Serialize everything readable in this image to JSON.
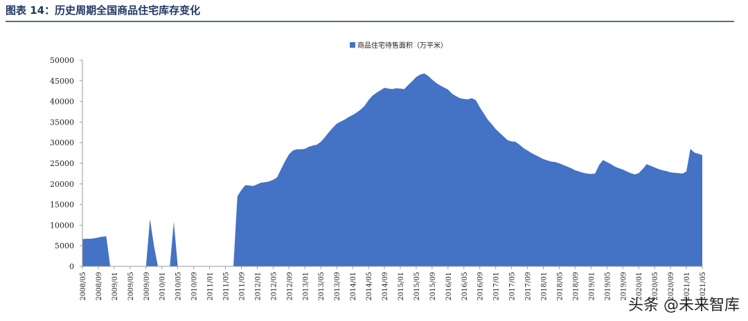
{
  "chart_data": {
    "type": "area",
    "title": "图表 14：历史周期全国商品住宅库存变化",
    "watermark": "头条 @未来智库",
    "categories": [
      "2008/05",
      null,
      null,
      null,
      "2008/09",
      null,
      null,
      null,
      "2009/01",
      null,
      null,
      null,
      "2009/05",
      null,
      null,
      null,
      "2009/09",
      null,
      null,
      null,
      "2010/01",
      null,
      null,
      null,
      "2010/05",
      null,
      null,
      null,
      "2010/09",
      null,
      null,
      null,
      "2011/01",
      null,
      null,
      null,
      "2011/05",
      null,
      null,
      null,
      "2011/09",
      null,
      null,
      null,
      "2012/01",
      null,
      null,
      null,
      "2012/05",
      null,
      null,
      null,
      "2012/09",
      null,
      null,
      null,
      "2013/01",
      null,
      null,
      null,
      "2013/05",
      null,
      null,
      null,
      "2013/09",
      null,
      null,
      null,
      "2014/01",
      null,
      null,
      null,
      "2014/05",
      null,
      null,
      null,
      "2014/09",
      null,
      null,
      null,
      "2015/01",
      null,
      null,
      null,
      "2015/05",
      null,
      null,
      null,
      "2015/09",
      null,
      null,
      null,
      "2016/01",
      null,
      null,
      null,
      "2016/05",
      null,
      null,
      null,
      "2016/09",
      null,
      null,
      null,
      "2017/01",
      null,
      null,
      null,
      "2017/05",
      null,
      null,
      null,
      "2017/09",
      null,
      null,
      null,
      "2018/01",
      null,
      null,
      null,
      "2018/05",
      null,
      null,
      null,
      "2018/09",
      null,
      null,
      null,
      "2019/01",
      null,
      null,
      null,
      "2019/05",
      null,
      null,
      null,
      "2019/09",
      null,
      null,
      null,
      "2020/01",
      null,
      null,
      null,
      "2020/05",
      null,
      null,
      null,
      "2020/09",
      null,
      null,
      null,
      "2021/01",
      null,
      null,
      null,
      "2021/05"
    ],
    "series": [
      {
        "name": "商品住宅待售面积（万平米）",
        "color": "#4472c4",
        "values": [
          6600,
          6700,
          6700,
          6800,
          7000,
          7200,
          7300,
          0,
          0,
          0,
          0,
          0,
          0,
          0,
          0,
          0,
          0,
          11500,
          5000,
          0,
          0,
          0,
          0,
          10800,
          0,
          0,
          0,
          0,
          0,
          0,
          0,
          0,
          0,
          0,
          0,
          0,
          0,
          0,
          0,
          17000,
          18500,
          19700,
          19600,
          19500,
          19900,
          20300,
          20400,
          20600,
          21000,
          21600,
          23600,
          25500,
          27200,
          28100,
          28400,
          28400,
          28500,
          29000,
          29300,
          29500,
          30200,
          31300,
          32500,
          33600,
          34600,
          35100,
          35600,
          36200,
          36700,
          37300,
          38000,
          38900,
          40300,
          41400,
          42100,
          42700,
          43300,
          43100,
          43000,
          43200,
          43100,
          43000,
          44000,
          44900,
          45900,
          46500,
          46800,
          46200,
          45300,
          44500,
          43900,
          43400,
          42900,
          41900,
          41300,
          40800,
          40600,
          40500,
          40800,
          40300,
          38600,
          37100,
          35600,
          34500,
          33300,
          32400,
          31500,
          30600,
          30300,
          30200,
          29500,
          28700,
          28100,
          27500,
          27000,
          26500,
          26000,
          25700,
          25400,
          25300,
          25000,
          24600,
          24200,
          23800,
          23300,
          23000,
          22700,
          22500,
          22400,
          22500,
          24500,
          25800,
          25300,
          24800,
          24200,
          23800,
          23500,
          23000,
          22600,
          22300,
          22600,
          23600,
          24800,
          24400,
          24000,
          23600,
          23300,
          23100,
          22800,
          22700,
          22600,
          22500,
          23000,
          28500,
          27600,
          27300,
          27000
        ]
      }
    ],
    "ylim": [
      0,
      50000
    ],
    "yticks": [
      0,
      5000,
      10000,
      15000,
      20000,
      25000,
      30000,
      35000,
      40000,
      45000,
      50000
    ]
  }
}
